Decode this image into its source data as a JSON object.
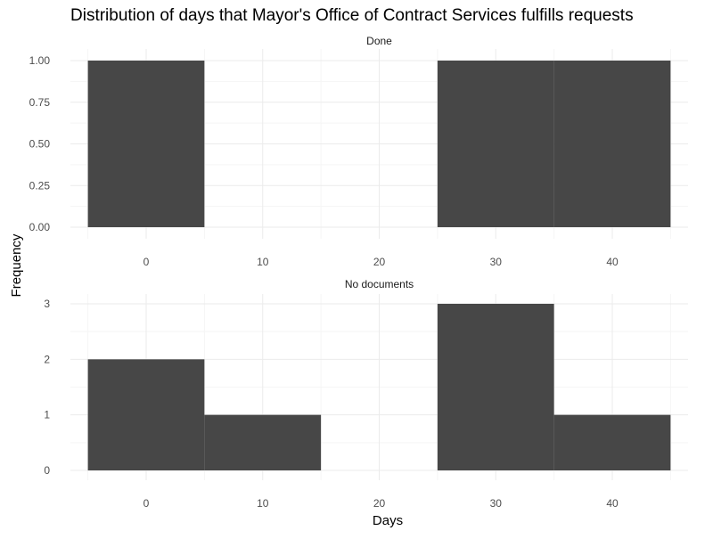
{
  "chart_data": {
    "type": "bar",
    "title": "Distribution of days that Mayor's Office of Contract Services fulfills requests",
    "xlabel": "Days",
    "ylabel": "Frequency",
    "grid": true,
    "legend": "none",
    "bar_color": "#474747",
    "grid_major_color": "#ebebeb",
    "grid_minor_color": "#f5f5f5",
    "bin_width": 10,
    "bins": [
      0,
      10,
      20,
      30,
      40
    ],
    "x_ticks": [
      "0",
      "10",
      "20",
      "30",
      "40"
    ],
    "xlim": [
      -6.5,
      46.5
    ],
    "panels": [
      {
        "label": "Done",
        "counts": [
          1,
          0,
          0,
          1,
          1
        ],
        "y_ticks": [
          "0.00",
          "0.25",
          "0.50",
          "0.75",
          "1.00"
        ],
        "ylim": [
          0,
          1
        ]
      },
      {
        "label": "No documents",
        "counts": [
          2,
          1,
          0,
          3,
          1
        ],
        "y_ticks": [
          "0",
          "1",
          "2",
          "3"
        ],
        "ylim": [
          0,
          3
        ]
      }
    ]
  }
}
